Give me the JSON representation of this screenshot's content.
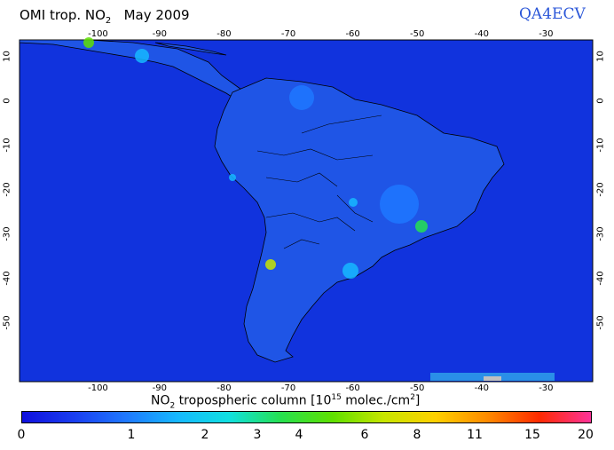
{
  "title": {
    "prefix": "OMI trop. NO",
    "sub": "2",
    "suffix": "May 2009"
  },
  "brand": "QA4ECV",
  "map": {
    "lon_range": [
      -112,
      -23
    ],
    "lat_range": [
      -63,
      14
    ],
    "top_ticks": [
      "-100",
      "-90",
      "-80",
      "-70",
      "-60",
      "-50",
      "-40",
      "-30"
    ],
    "bottom_ticks": [
      "-100",
      "-90",
      "-80",
      "-70",
      "-60",
      "-50",
      "-40",
      "-30"
    ],
    "left_ticks": [
      "10",
      "0",
      "-10",
      "-20",
      "-30",
      "-40",
      "-50"
    ],
    "right_ticks": [
      "10",
      "0",
      "-10",
      "-20",
      "-30",
      "-40",
      "-50"
    ],
    "ocean_color": "#1133dd",
    "land_color": "#1f55e6",
    "boundary_color": "#000000"
  },
  "colorbar": {
    "label_main": "NO",
    "label_sub": "2",
    "label_mid": " tropospheric column [10",
    "label_sup": "15",
    "label_end": " molec./cm",
    "label_sup2": "2",
    "label_close": "]",
    "tick_labels": [
      "0",
      "1",
      "2",
      "3",
      "4",
      "6",
      "8",
      "11",
      "15",
      "20"
    ],
    "colors": [
      "#1010dd",
      "#1a3ef0",
      "#1f78ff",
      "#16b8ff",
      "#10e0e0",
      "#26e050",
      "#5fe000",
      "#c8e600",
      "#ffd000",
      "#ff8a00",
      "#ff2a00",
      "#ff3399"
    ]
  }
}
